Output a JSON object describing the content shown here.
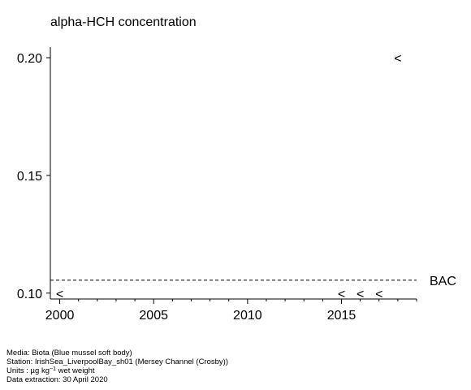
{
  "chart_data": {
    "type": "scatter",
    "title": "alpha-HCH concentration",
    "xlabel": "",
    "ylabel": "",
    "xlim": [
      1999.5,
      2019.0
    ],
    "ylim": [
      0.0975,
      0.2045
    ],
    "x_ticks": [
      2000,
      2005,
      2010,
      2015
    ],
    "x_tick_labels": [
      "2000",
      "2005",
      "2010",
      "2015"
    ],
    "y_ticks": [
      0.1,
      0.15,
      0.2
    ],
    "y_tick_labels": [
      "0.10",
      "0.15",
      "0.20"
    ],
    "series": [
      {
        "marker": "<",
        "points": [
          {
            "x": 2000,
            "y": 0.1
          },
          {
            "x": 2015,
            "y": 0.1
          },
          {
            "x": 2016,
            "y": 0.1
          },
          {
            "x": 2017,
            "y": 0.1
          },
          {
            "x": 2018,
            "y": 0.2
          }
        ]
      }
    ],
    "reference_lines": [
      {
        "label": "BAC",
        "y": 0.1055,
        "style": "dashed"
      }
    ],
    "grid": false,
    "legend": "none"
  },
  "footer": {
    "media": "Media: Biota (Blue mussel soft body)",
    "station": "Station: IrishSea_LiverpoolBay_sh01 (Mersey Channel (Crosby))",
    "units_prefix": "Units : µg kg",
    "units_exp": "−1",
    "units_suffix": " wet weight",
    "extraction": "Data extraction: 30 April 2020"
  }
}
